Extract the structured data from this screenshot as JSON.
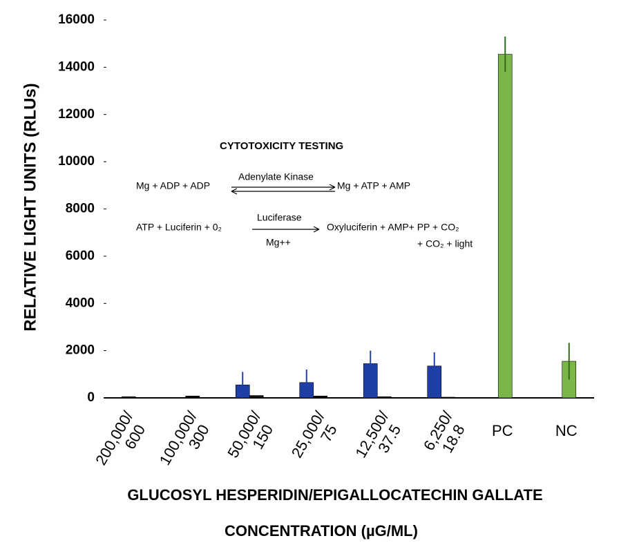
{
  "chart_data": {
    "type": "bar",
    "y_label": "RELATIVE LIGHT UNITS (RLUs)",
    "x_label": [
      "GLUCOSYL HESPERIDIN/EPIGALLOCATECHIN GALLATE",
      "CONCENTRATION (µG/ML)"
    ],
    "categories": [
      [
        "200,000/",
        "600"
      ],
      [
        "100,000/",
        "300"
      ],
      [
        "50,000/",
        "150"
      ],
      [
        "25,000/",
        "75"
      ],
      [
        "12,500/",
        "37.5"
      ],
      [
        "6,250/",
        "18.8"
      ],
      [
        "PC"
      ],
      [
        "NC"
      ]
    ],
    "series": [
      {
        "color": "#1f3fa8",
        "values": [
          20,
          20,
          550,
          650,
          1450,
          1350,
          null,
          null
        ],
        "errors": [
          null,
          null,
          550,
          550,
          550,
          580,
          null,
          null
        ]
      },
      {
        "color": "#111111",
        "values": [
          50,
          80,
          100,
          80,
          50,
          30,
          null,
          null
        ]
      },
      {
        "color": "#7ab648",
        "values": [
          null,
          null,
          null,
          null,
          null,
          null,
          14550,
          1550
        ],
        "errors": [
          null,
          null,
          null,
          null,
          null,
          null,
          750,
          780
        ]
      }
    ],
    "ylim": [
      0,
      16000
    ],
    "yticks": [
      0,
      2000,
      4000,
      6000,
      8000,
      10000,
      12000,
      14000,
      16000
    ],
    "annotations": [
      "CYTOTOXICITY TESTING",
      "Mg + ADP + ADP",
      "Adenylate  Kinase",
      "Mg + ATP + AMP",
      "ATP + Luciferin + 0₂",
      "Luciferase",
      "Oxyluciferin + AMP+ PP + CO₂",
      "Mg++",
      "+ CO₂  + light"
    ]
  }
}
